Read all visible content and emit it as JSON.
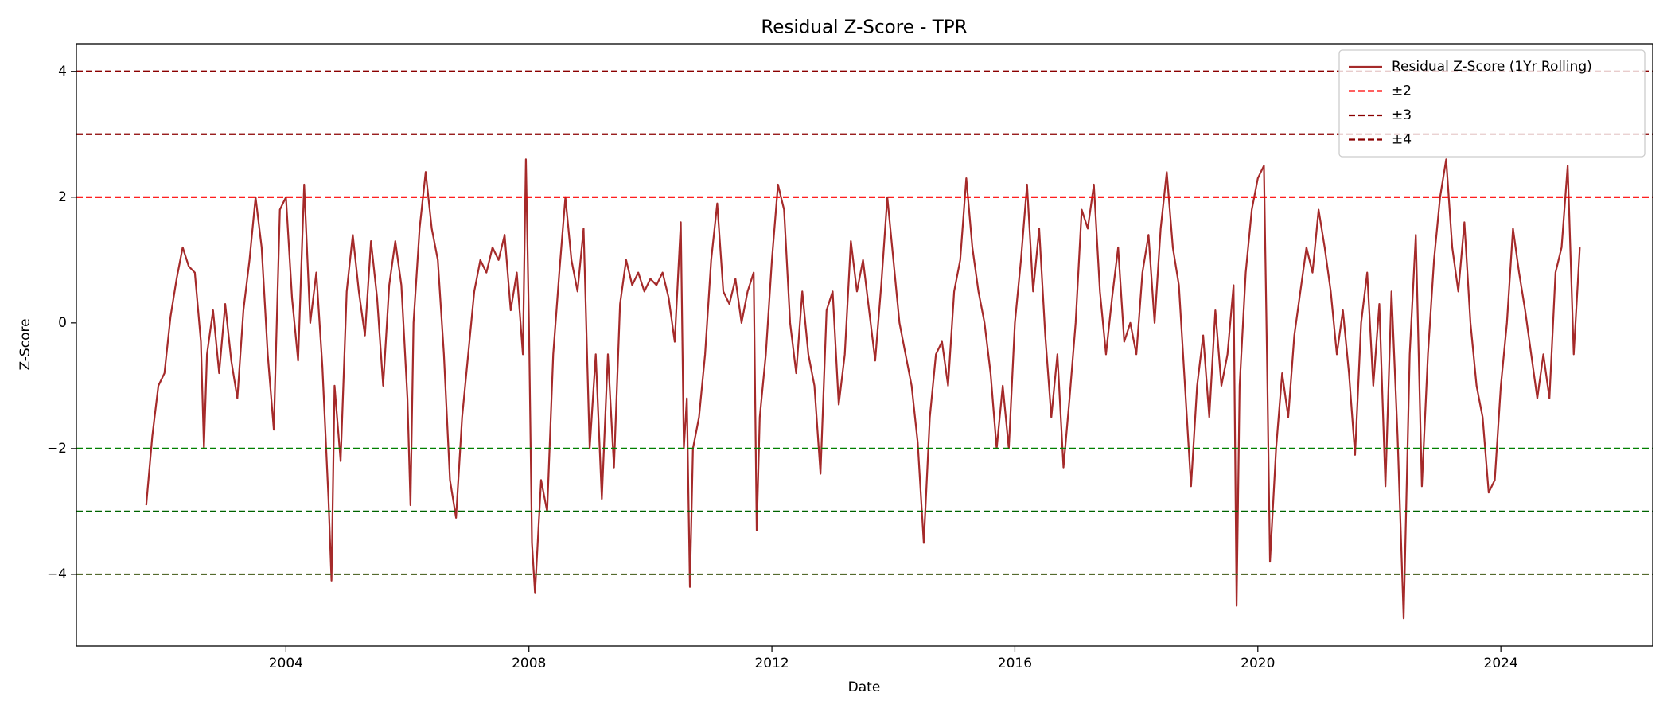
{
  "chart_data": {
    "type": "line",
    "title": "Residual Z-Score - TPR",
    "x_label": "Date",
    "y_label": "Z-Score",
    "xlim": [
      2000.55,
      2026.5
    ],
    "ylim": [
      -5.14,
      4.44
    ],
    "xticks": [
      2004,
      2008,
      2012,
      2016,
      2020,
      2024
    ],
    "yticks": [
      {
        "value": -4,
        "label": "−4"
      },
      {
        "value": -2,
        "label": "−2"
      },
      0,
      2,
      4
    ],
    "legend": "upper right",
    "x": [
      2001.7,
      2001.8,
      2001.9,
      2002.0,
      2002.1,
      2002.2,
      2002.3,
      2002.4,
      2002.5,
      2002.6,
      2002.65,
      2002.7,
      2002.8,
      2002.9,
      2003.0,
      2003.1,
      2003.2,
      2003.3,
      2003.4,
      2003.5,
      2003.6,
      2003.7,
      2003.8,
      2003.9,
      2004.0,
      2004.1,
      2004.2,
      2004.3,
      2004.4,
      2004.5,
      2004.6,
      2004.7,
      2004.75,
      2004.8,
      2004.9,
      2005.0,
      2005.1,
      2005.2,
      2005.3,
      2005.4,
      2005.5,
      2005.6,
      2005.7,
      2005.8,
      2005.9,
      2006.0,
      2006.05,
      2006.1,
      2006.2,
      2006.3,
      2006.4,
      2006.5,
      2006.6,
      2006.7,
      2006.8,
      2006.9,
      2007.0,
      2007.1,
      2007.2,
      2007.3,
      2007.4,
      2007.5,
      2007.6,
      2007.7,
      2007.8,
      2007.9,
      2007.95,
      2008.0,
      2008.05,
      2008.1,
      2008.2,
      2008.3,
      2008.4,
      2008.5,
      2008.6,
      2008.7,
      2008.8,
      2008.9,
      2009.0,
      2009.1,
      2009.2,
      2009.3,
      2009.4,
      2009.5,
      2009.6,
      2009.7,
      2009.8,
      2009.9,
      2010.0,
      2010.1,
      2010.2,
      2010.3,
      2010.4,
      2010.5,
      2010.55,
      2010.6,
      2010.65,
      2010.7,
      2010.8,
      2010.9,
      2011.0,
      2011.1,
      2011.2,
      2011.3,
      2011.4,
      2011.5,
      2011.6,
      2011.7,
      2011.75,
      2011.8,
      2011.9,
      2012.0,
      2012.1,
      2012.2,
      2012.3,
      2012.4,
      2012.5,
      2012.6,
      2012.7,
      2012.8,
      2012.9,
      2013.0,
      2013.1,
      2013.2,
      2013.3,
      2013.4,
      2013.5,
      2013.6,
      2013.7,
      2013.8,
      2013.9,
      2014.0,
      2014.1,
      2014.2,
      2014.3,
      2014.4,
      2014.5,
      2014.6,
      2014.7,
      2014.8,
      2014.9,
      2015.0,
      2015.1,
      2015.2,
      2015.3,
      2015.4,
      2015.5,
      2015.6,
      2015.7,
      2015.8,
      2015.9,
      2016.0,
      2016.1,
      2016.2,
      2016.3,
      2016.4,
      2016.5,
      2016.6,
      2016.7,
      2016.8,
      2016.9,
      2017.0,
      2017.1,
      2017.2,
      2017.3,
      2017.4,
      2017.5,
      2017.6,
      2017.7,
      2017.8,
      2017.9,
      2018.0,
      2018.1,
      2018.2,
      2018.3,
      2018.4,
      2018.5,
      2018.6,
      2018.7,
      2018.8,
      2018.9,
      2019.0,
      2019.1,
      2019.2,
      2019.3,
      2019.4,
      2019.5,
      2019.6,
      2019.65,
      2019.7,
      2019.8,
      2019.9,
      2020.0,
      2020.1,
      2020.15,
      2020.2,
      2020.3,
      2020.4,
      2020.5,
      2020.6,
      2020.7,
      2020.8,
      2020.9,
      2021.0,
      2021.1,
      2021.2,
      2021.3,
      2021.4,
      2021.5,
      2021.6,
      2021.7,
      2021.8,
      2021.9,
      2022.0,
      2022.1,
      2022.2,
      2022.3,
      2022.4,
      2022.5,
      2022.6,
      2022.7,
      2022.8,
      2022.9,
      2023.0,
      2023.1,
      2023.2,
      2023.3,
      2023.4,
      2023.5,
      2023.6,
      2023.7,
      2023.8,
      2023.9,
      2024.0,
      2024.1,
      2024.2,
      2024.3,
      2024.4,
      2024.5,
      2024.6,
      2024.7,
      2024.8,
      2024.9,
      2025.0,
      2025.1,
      2025.15,
      2025.2,
      2025.3
    ],
    "series": [
      {
        "name": "Residual Z-Score (1Yr Rolling)",
        "color": "#a52a2a",
        "values": [
          -2.9,
          -1.8,
          -1.0,
          -0.8,
          0.1,
          0.7,
          1.2,
          0.9,
          0.8,
          -0.3,
          -2.0,
          -0.5,
          0.2,
          -0.8,
          0.3,
          -0.6,
          -1.2,
          0.2,
          1.0,
          2.0,
          1.2,
          -0.5,
          -1.7,
          1.8,
          2.0,
          0.4,
          -0.6,
          2.2,
          0.0,
          0.8,
          -0.7,
          -2.8,
          -4.1,
          -1.0,
          -2.2,
          0.5,
          1.4,
          0.5,
          -0.2,
          1.3,
          0.4,
          -1.0,
          0.6,
          1.3,
          0.6,
          -1.2,
          -2.9,
          0.0,
          1.5,
          2.4,
          1.5,
          1.0,
          -0.5,
          -2.5,
          -3.1,
          -1.5,
          -0.5,
          0.5,
          1.0,
          0.8,
          1.2,
          1.0,
          1.4,
          0.2,
          0.8,
          -0.5,
          2.6,
          0.0,
          -3.5,
          -4.3,
          -2.5,
          -3.0,
          -0.5,
          0.8,
          2.0,
          1.0,
          0.5,
          1.5,
          -2.0,
          -0.5,
          -2.8,
          -0.5,
          -2.3,
          0.3,
          1.0,
          0.6,
          0.8,
          0.5,
          0.7,
          0.6,
          0.8,
          0.4,
          -0.3,
          1.6,
          -2.0,
          -1.2,
          -4.2,
          -2.0,
          -1.5,
          -0.5,
          1.0,
          1.9,
          0.5,
          0.3,
          0.7,
          0.0,
          0.5,
          0.8,
          -3.3,
          -1.5,
          -0.5,
          1.0,
          2.2,
          1.8,
          0.0,
          -0.8,
          0.5,
          -0.5,
          -1.0,
          -2.4,
          0.2,
          0.5,
          -1.3,
          -0.5,
          1.3,
          0.5,
          1.0,
          0.2,
          -0.6,
          0.6,
          2.0,
          1.0,
          0.0,
          -0.5,
          -1.0,
          -1.9,
          -3.5,
          -1.5,
          -0.5,
          -0.3,
          -1.0,
          0.5,
          1.0,
          2.3,
          1.2,
          0.5,
          0.0,
          -0.8,
          -2.0,
          -1.0,
          -2.0,
          0.0,
          1.0,
          2.2,
          0.5,
          1.5,
          -0.2,
          -1.5,
          -0.5,
          -2.3,
          -1.2,
          0.0,
          1.8,
          1.5,
          2.2,
          0.5,
          -0.5,
          0.4,
          1.2,
          -0.3,
          0.0,
          -0.5,
          0.8,
          1.4,
          0.0,
          1.5,
          2.4,
          1.2,
          0.6,
          -1.0,
          -2.6,
          -1.0,
          -0.2,
          -1.5,
          0.2,
          -1.0,
          -0.5,
          0.6,
          -4.5,
          -1.0,
          0.8,
          1.8,
          2.3,
          2.5,
          -0.5,
          -3.8,
          -2.0,
          -0.8,
          -1.5,
          -0.2,
          0.5,
          1.2,
          0.8,
          1.8,
          1.2,
          0.5,
          -0.5,
          0.2,
          -0.8,
          -2.1,
          0.0,
          0.8,
          -1.0,
          0.3,
          -2.6,
          0.5,
          -1.8,
          -4.7,
          -0.5,
          1.4,
          -2.6,
          -0.5,
          1.0,
          2.0,
          2.6,
          1.2,
          0.5,
          1.6,
          0.0,
          -1.0,
          -1.5,
          -2.7,
          -2.5,
          -1.0,
          0.0,
          1.5,
          0.8,
          0.2,
          -0.5,
          -1.2,
          -0.5,
          -1.2,
          0.8,
          1.2,
          2.5,
          1.0,
          -0.5,
          1.2
        ]
      }
    ],
    "thresholds": [
      {
        "name": "±2",
        "values": [
          2,
          -2
        ],
        "colors": [
          "#ff0000",
          "#008000"
        ]
      },
      {
        "name": "±3",
        "values": [
          3,
          -3
        ],
        "colors": [
          "#8b0000",
          "#006400"
        ]
      },
      {
        "name": "±4",
        "values": [
          4,
          -4
        ],
        "colors": [
          "#8b0000",
          "#556b2f"
        ]
      }
    ]
  }
}
